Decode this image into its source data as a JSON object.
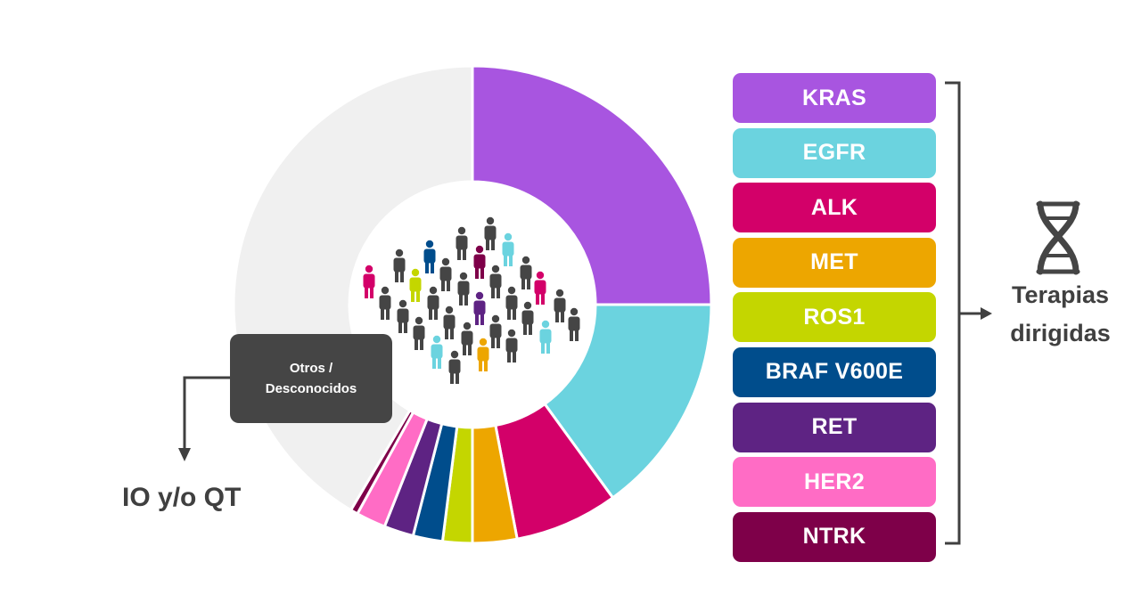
{
  "chart_data": {
    "type": "donut",
    "categories": [
      "KRAS",
      "EGFR",
      "ALK",
      "MET",
      "ROS1",
      "BRAF V600E",
      "RET",
      "HER2",
      "NTRK",
      "Otros / Desconocidos"
    ],
    "values": [
      25,
      15,
      7,
      3,
      2,
      2,
      2,
      2,
      0.5,
      41.5
    ],
    "colors": [
      "#A855E0",
      "#6BD3DF",
      "#D30069",
      "#EDA600",
      "#C4D600",
      "#004D8C",
      "#5E2383",
      "#FF6CC5",
      "#7E0049",
      "#F0F0F0"
    ]
  },
  "legend": {
    "items": [
      {
        "label": "KRAS",
        "color": "#A855E0"
      },
      {
        "label": "EGFR",
        "color": "#6BD3DF"
      },
      {
        "label": "ALK",
        "color": "#D30069"
      },
      {
        "label": "MET",
        "color": "#EDA600"
      },
      {
        "label": "ROS1",
        "color": "#C4D600"
      },
      {
        "label": "BRAF V600E",
        "color": "#004D8C"
      },
      {
        "label": "RET",
        "color": "#5E2383"
      },
      {
        "label": "HER2",
        "color": "#FF6CC5"
      },
      {
        "label": "NTRK",
        "color": "#7E0049"
      }
    ]
  },
  "others_box": {
    "line1": "Otros /",
    "line2": "Desconocidos"
  },
  "io_label": "IO y/o QT",
  "therapy_label": {
    "line1": "Terapias",
    "line2": "dirigidas"
  },
  "icons": {
    "center": "people-crowd-icon",
    "dna": "dna-icon"
  },
  "crowd_colors": [
    "#454545",
    "#D30069",
    "#6BD3DF",
    "#C4D600",
    "#004D8C",
    "#5E2383",
    "#EDA600",
    "#7E0049"
  ]
}
